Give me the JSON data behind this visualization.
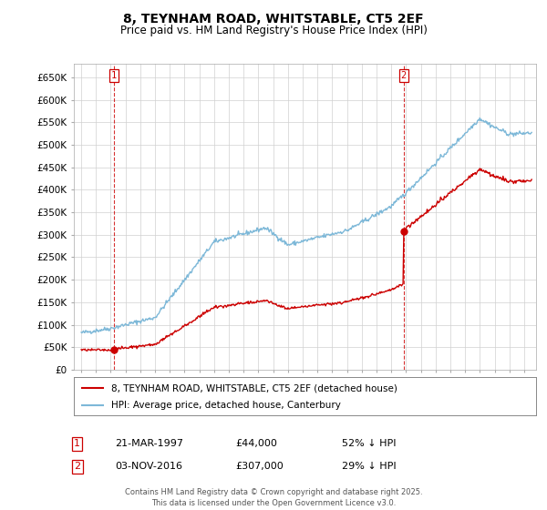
{
  "title": "8, TEYNHAM ROAD, WHITSTABLE, CT5 2EF",
  "subtitle": "Price paid vs. HM Land Registry's House Price Index (HPI)",
  "background_color": "#ffffff",
  "grid_color": "#d0d0d0",
  "sale1_year": 1997.22,
  "sale1_price": 44000,
  "sale2_year": 2016.84,
  "sale2_price": 307000,
  "legend_line1": "8, TEYNHAM ROAD, WHITSTABLE, CT5 2EF (detached house)",
  "legend_line2": "HPI: Average price, detached house, Canterbury",
  "footer": "Contains HM Land Registry data © Crown copyright and database right 2025.\nThis data is licensed under the Open Government Licence v3.0.",
  "hpi_color": "#7db8d8",
  "price_color": "#cc0000",
  "ylim": [
    0,
    680000
  ],
  "xlim": [
    1994.5,
    2025.8
  ],
  "ytick_vals": [
    0,
    50000,
    100000,
    150000,
    200000,
    250000,
    300000,
    350000,
    400000,
    450000,
    500000,
    550000,
    600000,
    650000
  ],
  "ytick_labels": [
    "£0",
    "£50K",
    "£100K",
    "£150K",
    "£200K",
    "£250K",
    "£300K",
    "£350K",
    "£400K",
    "£450K",
    "£500K",
    "£550K",
    "£600K",
    "£650K"
  ],
  "xtick_start": 1995,
  "xtick_end": 2025,
  "ann1_date": "21-MAR-1997",
  "ann1_price": "£44,000",
  "ann1_pct": "52% ↓ HPI",
  "ann2_date": "03-NOV-2016",
  "ann2_price": "£307,000",
  "ann2_pct": "29% ↓ HPI"
}
